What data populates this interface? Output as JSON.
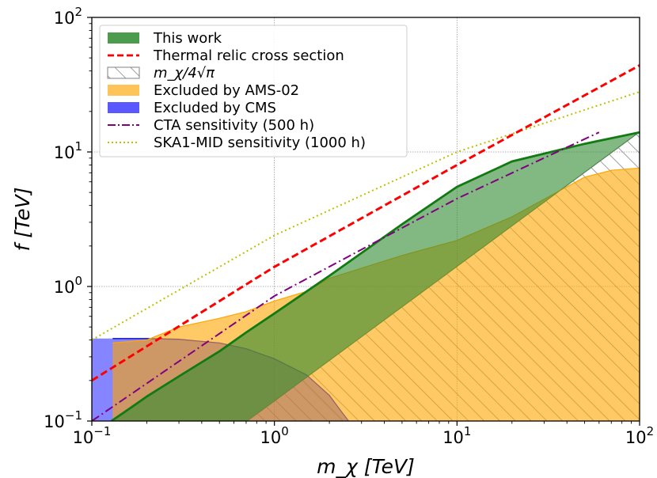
{
  "chart_data": {
    "type": "area",
    "xscale": "log",
    "yscale": "log",
    "xlim": [
      0.1,
      100
    ],
    "ylim": [
      0.1,
      100
    ],
    "grid": true,
    "legend_position": "top-left",
    "xlabel": "m_χ [TeV]",
    "ylabel": "f [TeV]",
    "x_ticks": [
      {
        "value": 0.1,
        "base": "10",
        "exp": "−1"
      },
      {
        "value": 1,
        "base": "10",
        "exp": "0"
      },
      {
        "value": 10,
        "base": "10",
        "exp": "1"
      },
      {
        "value": 100,
        "base": "10",
        "exp": "2"
      }
    ],
    "y_ticks": [
      {
        "value": 0.1,
        "base": "10",
        "exp": "−1"
      },
      {
        "value": 1,
        "base": "10",
        "exp": "0"
      },
      {
        "value": 10,
        "base": "10",
        "exp": "1"
      },
      {
        "value": 100,
        "base": "10",
        "exp": "2"
      }
    ],
    "series": [
      {
        "name": "This work",
        "kind": "band",
        "color": "#2e8b2e",
        "upper": [
          [
            0.128,
            0.1
          ],
          [
            0.16,
            0.123
          ],
          [
            0.2,
            0.152
          ],
          [
            0.3,
            0.215
          ],
          [
            0.5,
            0.33
          ],
          [
            0.7,
            0.455
          ],
          [
            1.0,
            0.63
          ],
          [
            2.0,
            1.2
          ],
          [
            5.0,
            2.9
          ],
          [
            10,
            5.5
          ],
          [
            20,
            8.5
          ],
          [
            50,
            11.5
          ],
          [
            100,
            14.0
          ]
        ],
        "lower": [
          [
            0.71,
            0.1
          ],
          [
            1,
            0.14
          ],
          [
            10,
            1.4
          ],
          [
            100,
            14.0
          ]
        ]
      },
      {
        "name": "Thermal relic cross section",
        "kind": "line",
        "style": "dashed",
        "color": "#ff0000",
        "points": [
          [
            0.1,
            0.2
          ],
          [
            1,
            1.4
          ],
          [
            10,
            8.0
          ],
          [
            100,
            44
          ]
        ]
      },
      {
        "name": "m_χ/4√π",
        "kind": "hatched_region",
        "color": "#808080",
        "points": [
          [
            0.71,
            0.1
          ],
          [
            100,
            14.1
          ]
        ]
      },
      {
        "name": "Excluded by AMS-02",
        "kind": "region",
        "color": "#ffa500",
        "points": [
          [
            0.13,
            0.38
          ],
          [
            0.2,
            0.4
          ],
          [
            0.3,
            0.5
          ],
          [
            0.5,
            0.58
          ],
          [
            0.7,
            0.65
          ],
          [
            1.0,
            0.78
          ],
          [
            1.5,
            0.92
          ],
          [
            2.0,
            1.15
          ],
          [
            5.0,
            1.7
          ],
          [
            10,
            2.2
          ],
          [
            20,
            3.3
          ],
          [
            50,
            6.5
          ],
          [
            70,
            7.3
          ],
          [
            100,
            7.6
          ]
        ]
      },
      {
        "name": "Excluded by CMS",
        "kind": "region",
        "color": "#0000ff",
        "points": [
          [
            0.1,
            0.41
          ],
          [
            0.13,
            0.41
          ],
          [
            0.2,
            0.41
          ],
          [
            0.3,
            0.405
          ],
          [
            0.5,
            0.38
          ],
          [
            0.7,
            0.345
          ],
          [
            1.0,
            0.29
          ],
          [
            1.5,
            0.22
          ],
          [
            2.0,
            0.155
          ],
          [
            2.3,
            0.12
          ],
          [
            2.55,
            0.1
          ]
        ]
      },
      {
        "name": "CTA sensitivity (500 h)",
        "kind": "line",
        "style": "dashdot",
        "color": "#800080",
        "points": [
          [
            0.1,
            0.1
          ],
          [
            1,
            0.85
          ],
          [
            10,
            4.5
          ],
          [
            60,
            14.0
          ]
        ]
      },
      {
        "name": "SKA1-MID sensitivity (1000 h)",
        "kind": "line",
        "style": "dotted",
        "color": "#bfbf00",
        "points": [
          [
            0.1,
            0.4
          ],
          [
            1,
            2.4
          ],
          [
            10,
            10
          ],
          [
            100,
            28
          ]
        ]
      }
    ]
  }
}
